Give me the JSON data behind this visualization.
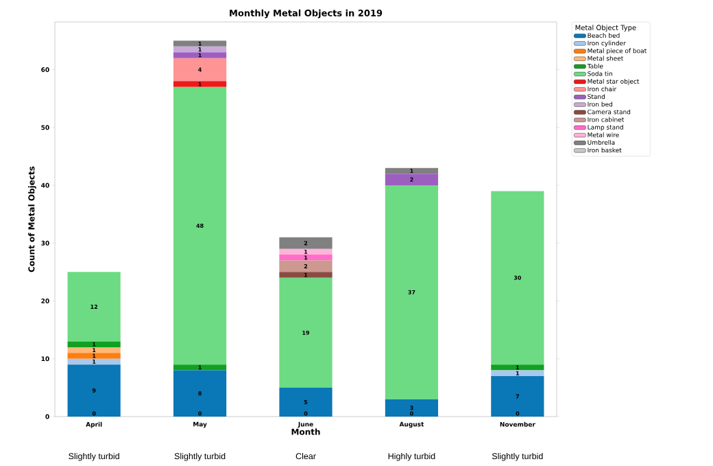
{
  "chart_data": {
    "type": "bar",
    "stacked": true,
    "title": "Monthly Metal Objects in 2019",
    "xlabel": "Month",
    "ylabel": "Count of Metal Objects",
    "legend_title": "Metal Object Type",
    "legend": "right",
    "categories": [
      "April",
      "May",
      "June",
      "August",
      "November"
    ],
    "ylim": [
      0,
      68.25
    ],
    "yticks": [
      0,
      10,
      20,
      30,
      40,
      50,
      60
    ],
    "series": [
      {
        "name": "Beach bed",
        "color": "#0a77b6",
        "values": [
          9,
          8,
          5,
          3,
          7
        ],
        "value_labels": [
          "9",
          "8",
          "5",
          "3",
          "7"
        ]
      },
      {
        "name": "Iron cylinder",
        "color": "#a8c8ec",
        "values": [
          1,
          0,
          0,
          0,
          1
        ],
        "value_labels": [
          "1",
          null,
          null,
          null,
          "1"
        ]
      },
      {
        "name": "Metal piece of boat",
        "color": "#ff7f0e",
        "values": [
          1,
          0,
          0,
          0,
          0
        ],
        "value_labels": [
          "1",
          null,
          null,
          null,
          null
        ]
      },
      {
        "name": "Metal sheet",
        "color": "#ffb878",
        "values": [
          1,
          0,
          0,
          0,
          0
        ],
        "value_labels": [
          "1",
          null,
          null,
          null,
          null
        ]
      },
      {
        "name": "Table",
        "color": "#12a020",
        "values": [
          1,
          1,
          0,
          0,
          1
        ],
        "value_labels": [
          "1",
          "1",
          null,
          null,
          "1"
        ]
      },
      {
        "name": "Soda tin",
        "color": "#6ddb84",
        "values": [
          12,
          48,
          19,
          37,
          30
        ],
        "value_labels": [
          "12",
          "48",
          "19",
          "37",
          "30"
        ]
      },
      {
        "name": "Metal star object",
        "color": "#f01818",
        "values": [
          0,
          1,
          0,
          0,
          0
        ],
        "value_labels": [
          null,
          "1",
          null,
          null,
          null
        ]
      },
      {
        "name": "Iron chair",
        "color": "#ff9494",
        "values": [
          0,
          4,
          0,
          0,
          0
        ],
        "value_labels": [
          null,
          "4",
          null,
          null,
          null
        ]
      },
      {
        "name": "Stand",
        "color": "#9c5fc0",
        "values": [
          0,
          1,
          0,
          2,
          0
        ],
        "value_labels": [
          null,
          "1",
          null,
          "2",
          null
        ]
      },
      {
        "name": "Iron bed",
        "color": "#c8aad8",
        "values": [
          0,
          1,
          0,
          0,
          0
        ],
        "value_labels": [
          null,
          "1",
          null,
          null,
          null
        ]
      },
      {
        "name": "Camera stand",
        "color": "#8c4b40",
        "values": [
          0,
          0,
          1,
          0,
          0
        ],
        "value_labels": [
          null,
          null,
          "1",
          null,
          null
        ]
      },
      {
        "name": "Iron cabinet",
        "color": "#cc9890",
        "values": [
          0,
          0,
          2,
          0,
          0
        ],
        "value_labels": [
          null,
          null,
          "2",
          null,
          null
        ]
      },
      {
        "name": "Lamp stand",
        "color": "#ff6ec8",
        "values": [
          0,
          0,
          1,
          0,
          0
        ],
        "value_labels": [
          null,
          null,
          "1",
          null,
          null
        ]
      },
      {
        "name": "Metal wire",
        "color": "#ffb4d8",
        "values": [
          0,
          0,
          1,
          0,
          0
        ],
        "value_labels": [
          null,
          null,
          "1",
          null,
          null
        ]
      },
      {
        "name": "Umbrella",
        "color": "#808080",
        "values": [
          0,
          1,
          2,
          1,
          0
        ],
        "value_labels": [
          null,
          "1",
          "2",
          "1",
          null
        ]
      },
      {
        "name": "Iron basket",
        "color": "#c8c8c8",
        "values": [
          0,
          0,
          0,
          0,
          0
        ]
      }
    ],
    "annotations": [
      "0",
      "0",
      "0",
      "0",
      "0",
      "Slightly turbid",
      "Slightly turbid",
      "Clear",
      "Highly turbid",
      "Slightly turbid"
    ]
  }
}
